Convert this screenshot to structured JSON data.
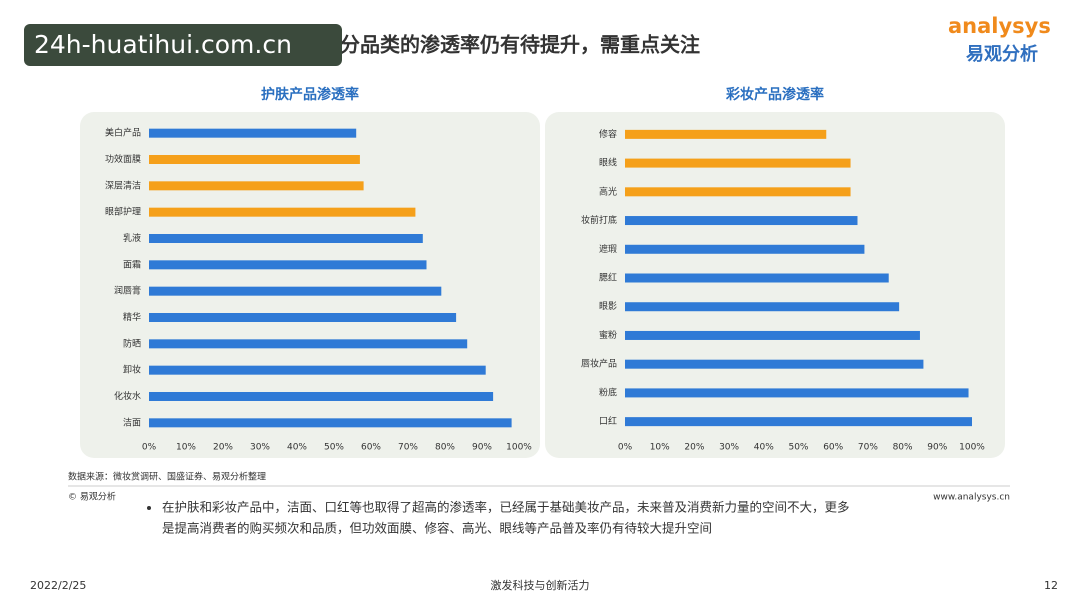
{
  "header": {
    "title": "新品类：护肤品、彩妆等部分细分品类的渗透率仍有待提升，需重点关注",
    "overlay": "24h-huatihui.com.cn",
    "logo_latin": "analysys",
    "logo_cn": "易观分析"
  },
  "chart_data": [
    {
      "type": "bar",
      "orientation": "horizontal",
      "title": "护肤产品渗透率",
      "categories": [
        "美白产品",
        "功效面膜",
        "深层清洁",
        "眼部护理",
        "乳液",
        "面霜",
        "润唇膏",
        "精华",
        "防晒",
        "卸妆",
        "化妆水",
        "洁面"
      ],
      "values": [
        56,
        57,
        58,
        72,
        74,
        75,
        79,
        83,
        86,
        91,
        93,
        98
      ],
      "colors": [
        "#2f7ad6",
        "#f5a01a",
        "#f5a01a",
        "#f5a01a",
        "#2f7ad6",
        "#2f7ad6",
        "#2f7ad6",
        "#2f7ad6",
        "#2f7ad6",
        "#2f7ad6",
        "#2f7ad6",
        "#2f7ad6"
      ],
      "xlim": [
        0,
        100
      ],
      "xticks": [
        {
          "value": 0,
          "label": "0%"
        },
        {
          "value": 10,
          "label": "10%"
        },
        {
          "value": 20,
          "label": "20%"
        },
        {
          "value": 30,
          "label": "30%"
        },
        {
          "value": 40,
          "label": "40%"
        },
        {
          "value": 50,
          "label": "50%"
        },
        {
          "value": 60,
          "label": "60%"
        },
        {
          "value": 70,
          "label": "70%"
        },
        {
          "value": 80,
          "label": "80%"
        },
        {
          "value": 90,
          "label": "90%"
        },
        {
          "value": 100,
          "label": "100%"
        }
      ]
    },
    {
      "type": "bar",
      "orientation": "horizontal",
      "title": "彩妆产品渗透率",
      "categories": [
        "修容",
        "眼线",
        "高光",
        "妆前打底",
        "遮瑕",
        "腮红",
        "眼影",
        "蜜粉",
        "唇妆产品",
        "粉底",
        "口红"
      ],
      "values": [
        58,
        65,
        65,
        67,
        69,
        76,
        79,
        85,
        86,
        99,
        100
      ],
      "colors": [
        "#f5a01a",
        "#f5a01a",
        "#f5a01a",
        "#2f7ad6",
        "#2f7ad6",
        "#2f7ad6",
        "#2f7ad6",
        "#2f7ad6",
        "#2f7ad6",
        "#2f7ad6",
        "#2f7ad6"
      ],
      "xlim": [
        0,
        100
      ],
      "xticks": [
        {
          "value": 0,
          "label": "0%"
        },
        {
          "value": 10,
          "label": "10%"
        },
        {
          "value": 20,
          "label": "20%"
        },
        {
          "value": 30,
          "label": "30%"
        },
        {
          "value": 40,
          "label": "40%"
        },
        {
          "value": 50,
          "label": "50%"
        },
        {
          "value": 60,
          "label": "60%"
        },
        {
          "value": 70,
          "label": "70%"
        },
        {
          "value": 80,
          "label": "80%"
        },
        {
          "value": 90,
          "label": "90%"
        },
        {
          "value": 100,
          "label": "100%"
        }
      ]
    }
  ],
  "source": "数据来源：微妆赏调研、国盛证券、易观分析整理",
  "copyright": "© 易观分析",
  "website": "www.analysys.cn",
  "bullet": [
    "在护肤和彩妆产品中，洁面、口红等也取得了超高的渗透率，已经属于基础美妆产品，未来普及消费新力量的空间不大，更多",
    "是提高消费者的购买频次和品质，但功效面膜、修容、高光、眼线等产品普及率仍有待较大提升空间"
  ],
  "footer": {
    "date": "2022/2/25",
    "slogan": "激发科技与创新活力",
    "page": "12"
  }
}
